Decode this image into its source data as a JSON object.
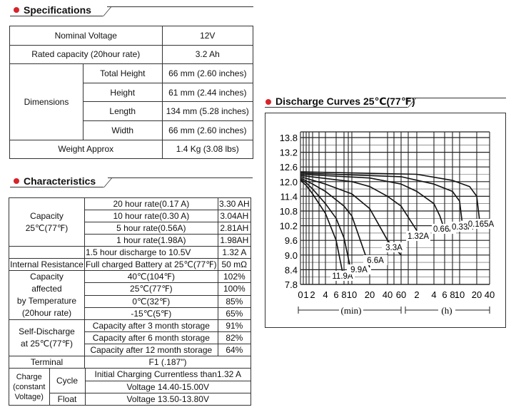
{
  "specifications": {
    "heading": "Specifications",
    "nominal_voltage": {
      "label": "Nominal Voltage",
      "value": "12V"
    },
    "rated_capacity": {
      "label": "Rated capacity (20hour rate)",
      "value": "3.2 Ah"
    },
    "dimensions": {
      "label": "Dimensions",
      "rows": [
        {
          "label": "Total Height",
          "value": "66 mm (2.60 inches)"
        },
        {
          "label": "Height",
          "value": "61 mm (2.44 inches)"
        },
        {
          "label": "Length",
          "value": "134 mm (5.28 inches)"
        },
        {
          "label": "Width",
          "value": "66 mm (2.60 inches)"
        }
      ]
    },
    "weight": {
      "label": "Weight Approx",
      "value": "1.4 Kg (3.08 lbs)"
    }
  },
  "characteristics": {
    "heading": "Characteristics",
    "capacity": {
      "label_line1": "Capacity",
      "label_line2": "25℃(77℉)",
      "rows": [
        {
          "rate": "20 hour rate(0.17 A)",
          "value": "3.30 AH"
        },
        {
          "rate": "10 hour rate(0.30 A)",
          "value": "3.04AH"
        },
        {
          "rate": "5 hour rate(0.56A)",
          "value": "2.81AH"
        },
        {
          "rate": "1 hour rate(1.98A)",
          "value": "1.98AH"
        },
        {
          "rate": "1.5 hour discharge to 10.5V",
          "value": "1.32 A"
        }
      ]
    },
    "internal_resistance": {
      "label": "Internal Resistance",
      "condition": "Full charged Battery at 25℃(77℉)",
      "value": "50 mΩ"
    },
    "temperature": {
      "label_lines": [
        "Capacity",
        "affected",
        "by Temperature",
        "(20hour rate)"
      ],
      "rows": [
        {
          "temp": "40℃(104℉)",
          "value": "102%"
        },
        {
          "temp": "25℃(77℉)",
          "value": "100%"
        },
        {
          "temp": "0℃(32℉)",
          "value": "85%"
        },
        {
          "temp": "-15℃(5℉)",
          "value": "65%"
        }
      ]
    },
    "self_discharge": {
      "label_line1": "Self-Discharge",
      "label_line2": "at 25℃(77℉)",
      "rows": [
        {
          "period": "Capacity after 3 month storage",
          "value": "91%"
        },
        {
          "period": "Capacity after 6 month storage",
          "value": "82%"
        },
        {
          "period": "Capacity after 12 month storage",
          "value": "64%"
        }
      ]
    },
    "terminal": {
      "label": "Terminal",
      "value": "F1 (.187\")"
    },
    "charge": {
      "label_lines": [
        "Charge",
        "(constant",
        "Voltage)"
      ],
      "cycle": {
        "label": "Cycle",
        "line1": "Initial Charging Currentless than1.32 A",
        "line2": "Voltage 14.40-15.00V"
      },
      "float": {
        "label": "Float",
        "value": "Voltage 13.50-13.80V"
      }
    }
  },
  "discharge": {
    "heading": "Discharge Curves 25℃(77℉)",
    "min_unit": "(min)",
    "h_unit": "(h)",
    "colors": {
      "heading_dot": "#d8232a",
      "line": "#111111"
    }
  },
  "chart_data": {
    "type": "line",
    "title": "Discharge Curves 25℃(77℉)",
    "y_ticks": [
      "13.8",
      "13.2",
      "12.6",
      "12.0",
      "11.4",
      "10.8",
      "10.2",
      "9.6",
      "9.0",
      "8.4",
      "7.8"
    ],
    "ylim": [
      7.8,
      13.8
    ],
    "x_ticks_min": [
      "0",
      "1",
      "2",
      "4",
      "6",
      "8",
      "10",
      "20",
      "40",
      "60"
    ],
    "x_ticks_h": [
      "2",
      "4",
      "6",
      "8",
      "10",
      "20",
      "40"
    ],
    "x_unit_min": "(min)",
    "x_unit_h": "(h)",
    "series": [
      {
        "name": "11.9A",
        "points": [
          [
            0,
            12.05
          ],
          [
            1,
            11.85
          ],
          [
            2,
            11.5
          ],
          [
            4,
            10.7
          ],
          [
            6,
            9.6
          ],
          [
            8,
            8.0
          ]
        ]
      },
      {
        "name": "9.9A",
        "points": [
          [
            0,
            12.1
          ],
          [
            1,
            11.95
          ],
          [
            2,
            11.7
          ],
          [
            4,
            11.1
          ],
          [
            6,
            10.5
          ],
          [
            8,
            9.7
          ],
          [
            10,
            8.2
          ]
        ]
      },
      {
        "name": "6.6A",
        "points": [
          [
            0,
            12.15
          ],
          [
            2,
            11.9
          ],
          [
            4,
            11.6
          ],
          [
            8,
            11.0
          ],
          [
            10,
            10.6
          ],
          [
            20,
            8.5
          ]
        ]
      },
      {
        "name": "3.3A",
        "points": [
          [
            0,
            12.2
          ],
          [
            4,
            11.9
          ],
          [
            10,
            11.5
          ],
          [
            20,
            10.9
          ],
          [
            40,
            9.6
          ],
          [
            60,
            9.0
          ]
        ]
      },
      {
        "name": "1.32A",
        "points": [
          [
            0,
            12.25
          ],
          [
            10,
            12.0
          ],
          [
            20,
            11.8
          ],
          [
            40,
            11.4
          ],
          [
            60,
            11.0
          ],
          [
            120,
            10.0
          ]
        ]
      },
      {
        "name": "0.66A",
        "points": [
          [
            0,
            12.3
          ],
          [
            20,
            12.15
          ],
          [
            60,
            11.9
          ],
          [
            120,
            11.6
          ],
          [
            240,
            11.1
          ],
          [
            300,
            10.6
          ],
          [
            340,
            10.2
          ]
        ]
      },
      {
        "name": "0.33A",
        "points": [
          [
            0,
            12.35
          ],
          [
            60,
            12.2
          ],
          [
            240,
            11.9
          ],
          [
            480,
            11.6
          ],
          [
            600,
            11.2
          ],
          [
            660,
            10.4
          ]
        ]
      },
      {
        "name": "0.165A",
        "points": [
          [
            0,
            12.4
          ],
          [
            120,
            12.3
          ],
          [
            480,
            12.05
          ],
          [
            900,
            11.8
          ],
          [
            1200,
            11.4
          ],
          [
            1400,
            10.4
          ]
        ]
      }
    ]
  }
}
